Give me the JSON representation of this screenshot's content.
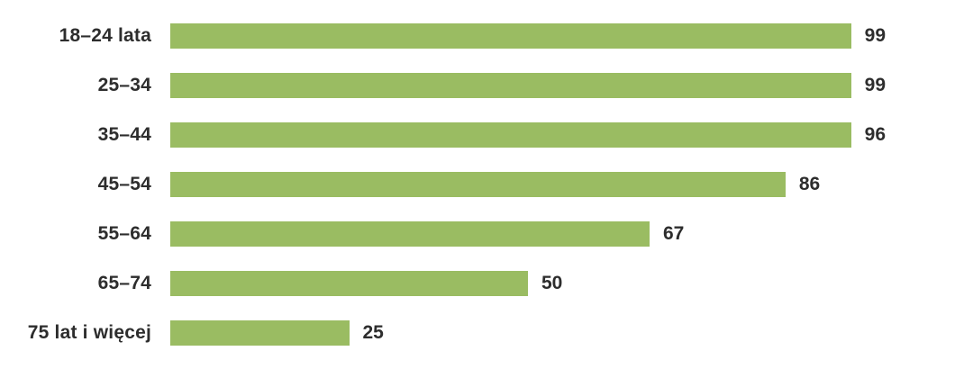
{
  "chart_data": {
    "type": "bar",
    "orientation": "horizontal",
    "categories": [
      "18–24 lata",
      "25–34",
      "35–44",
      "45–54",
      "55–64",
      "65–74",
      "75 lat i więcej"
    ],
    "values": [
      99,
      99,
      96,
      86,
      67,
      50,
      25
    ],
    "xlim": [
      0,
      100
    ],
    "grid": false,
    "legend": false,
    "value_label_position": "end-of-bar",
    "bar_color": "#9ABC62",
    "text_color": "#2d2d2d",
    "background_color": "#ffffff"
  }
}
